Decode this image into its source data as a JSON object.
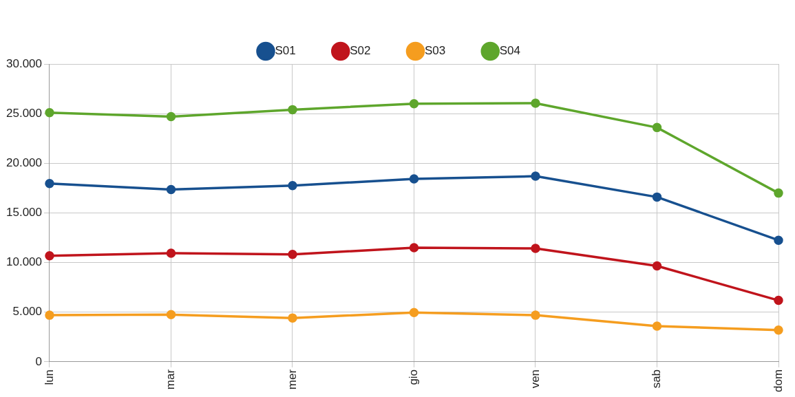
{
  "chart_data": {
    "type": "line",
    "categories": [
      "lun",
      "mar",
      "mer",
      "gio",
      "ven",
      "sab",
      "dom"
    ],
    "series": [
      {
        "name": "S01",
        "color": "#17508f",
        "values": [
          17960,
          17350,
          17750,
          18430,
          18700,
          16600,
          12250
        ]
      },
      {
        "name": "S02",
        "color": "#c0141c",
        "values": [
          10680,
          10950,
          10820,
          11500,
          11430,
          9660,
          6190
        ]
      },
      {
        "name": "S03",
        "color": "#f59d1f",
        "values": [
          4700,
          4760,
          4420,
          4970,
          4700,
          3600,
          3200
        ]
      },
      {
        "name": "S04",
        "color": "#5ea62c",
        "values": [
          25100,
          24700,
          25400,
          26000,
          26050,
          23600,
          17000
        ]
      }
    ],
    "ylim": [
      0,
      30000
    ],
    "yticks": [
      0,
      {
        "value": 5000,
        "label": "5.000"
      },
      {
        "value": 10000,
        "label": "10.000"
      },
      {
        "value": 15000,
        "label": "15.000"
      },
      {
        "value": 20000,
        "label": "20.000"
      },
      {
        "value": 25000,
        "label": "25.000"
      },
      {
        "value": 30000,
        "label": "30.000"
      }
    ],
    "grid": true,
    "legend": "top",
    "marker": "circle"
  }
}
